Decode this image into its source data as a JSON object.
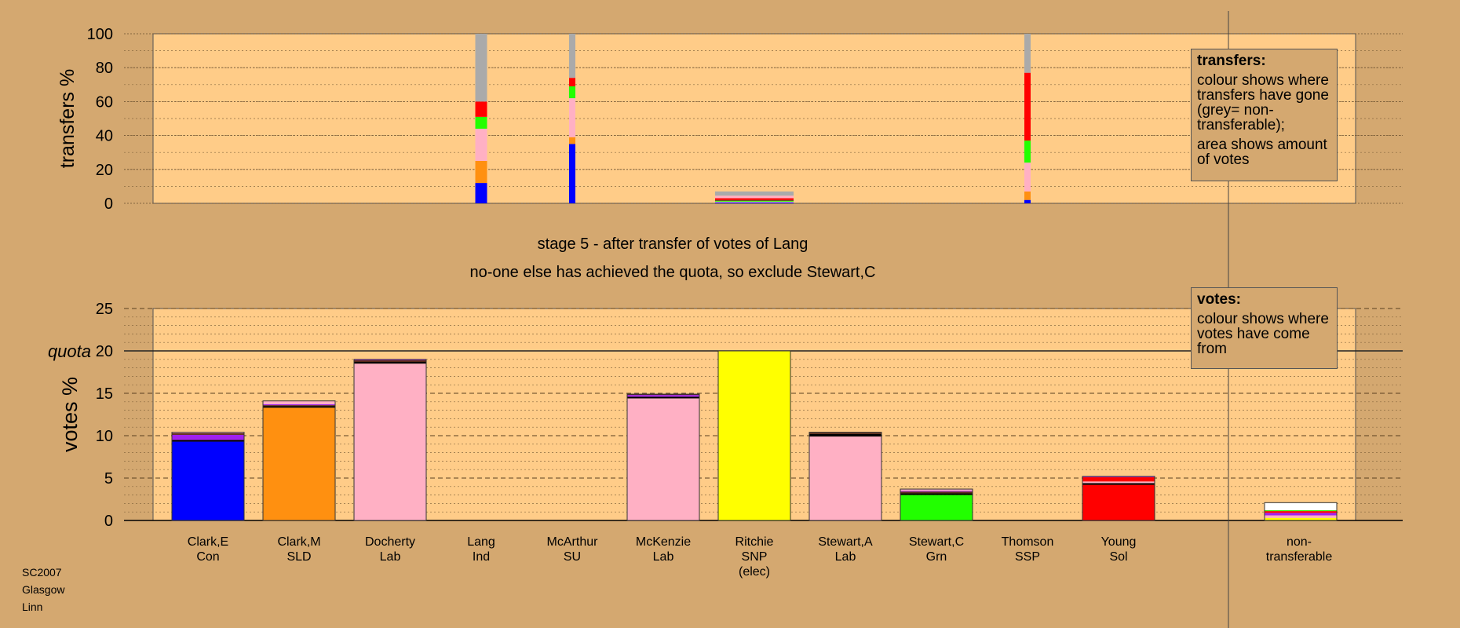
{
  "stage_line1": "stage 5 - after transfer of votes of Lang",
  "stage_line2": "no-one else has achieved the quota, so exclude Stewart,C",
  "caption": [
    "SC2007",
    "Glasgow",
    "Linn"
  ],
  "legend_transfers": {
    "title": "transfers:",
    "line1": "colour shows where transfers have gone (grey= non-transferable);",
    "line2": "area shows amount of votes"
  },
  "legend_votes": {
    "title": "votes:",
    "line1": "colour shows where votes have come from"
  },
  "colors": {
    "background": "#d4a870",
    "plot": "#ffcc88",
    "Con": "#0000ff",
    "SLD": "#ff9010",
    "Lab": "#ffb0c4",
    "SNP": "#ffff00",
    "Grn": "#22ff00",
    "Sol": "#ff0000",
    "Ind": "#a020f0",
    "SU": "#5a2a1a",
    "SSP": "#000000",
    "nontransferable": "#aaaaaa"
  },
  "chart_data": [
    {
      "type": "bar",
      "name": "transfers",
      "ylabel": "transfers %",
      "ylim": [
        0,
        100
      ],
      "yticks": [
        0,
        20,
        40,
        60,
        80,
        100
      ],
      "grid": true,
      "categories": [
        "Clark,E",
        "Clark,M",
        "Docherty",
        "Lang",
        "McArthur",
        "McKenzie",
        "Ritchie",
        "Stewart,A",
        "Stewart,C",
        "Thomson",
        "Young"
      ],
      "transfer_bars": [
        {
          "candidate": "Lang",
          "width_share": 0.15,
          "segments": [
            {
              "to": "Con",
              "value": 12
            },
            {
              "to": "SLD",
              "value": 13
            },
            {
              "to": "Lab",
              "value": 19
            },
            {
              "to": "Grn",
              "value": 7
            },
            {
              "to": "Sol",
              "value": 9
            },
            {
              "to": "nontransferable",
              "value": 40
            }
          ]
        },
        {
          "candidate": "McArthur",
          "width_share": 0.08,
          "segments": [
            {
              "to": "Con",
              "value": 35
            },
            {
              "to": "SLD",
              "value": 4
            },
            {
              "to": "Lab",
              "value": 23
            },
            {
              "to": "Grn",
              "value": 7
            },
            {
              "to": "Sol",
              "value": 5
            },
            {
              "to": "nontransferable",
              "value": 26
            }
          ]
        },
        {
          "candidate": "Ritchie",
          "width_share": 1.0,
          "segments": [
            {
              "to": "Con",
              "value": 0.5
            },
            {
              "to": "Lab",
              "value": 0.5
            },
            {
              "to": "Grn",
              "value": 0.5
            },
            {
              "to": "SU",
              "value": 0.5
            },
            {
              "to": "Sol",
              "value": 1
            },
            {
              "to": "Lab",
              "value": 1.5
            },
            {
              "to": "nontransferable",
              "value": 2.5
            }
          ]
        },
        {
          "candidate": "Thomson",
          "width_share": 0.08,
          "segments": [
            {
              "to": "Con",
              "value": 2
            },
            {
              "to": "SLD",
              "value": 5
            },
            {
              "to": "Lab",
              "value": 17
            },
            {
              "to": "Grn",
              "value": 13
            },
            {
              "to": "Sol",
              "value": 40
            },
            {
              "to": "nontransferable",
              "value": 23
            }
          ]
        }
      ]
    },
    {
      "type": "bar",
      "name": "votes",
      "ylabel": "votes %",
      "ylim": [
        0,
        25
      ],
      "yticks": [
        0,
        5,
        10,
        15,
        20,
        25
      ],
      "quota": 20,
      "quota_label": "quota",
      "grid": true,
      "categories": [
        {
          "name": "Clark,E",
          "party": "Con"
        },
        {
          "name": "Clark,M",
          "party": "SLD"
        },
        {
          "name": "Docherty",
          "party": "Lab"
        },
        {
          "name": "Lang",
          "party": "Ind"
        },
        {
          "name": "McArthur",
          "party": "SU"
        },
        {
          "name": "McKenzie",
          "party": "Lab"
        },
        {
          "name": "Ritchie",
          "party": "SNP",
          "note": "(elec)"
        },
        {
          "name": "Stewart,A",
          "party": "Lab"
        },
        {
          "name": "Stewart,C",
          "party": "Grn"
        },
        {
          "name": "Thomson",
          "party": "SSP"
        },
        {
          "name": "Young",
          "party": "Sol"
        },
        {
          "name": "",
          "party": ""
        },
        {
          "name": "non-",
          "party": "transferable"
        }
      ],
      "stacks": [
        [
          {
            "c": "Con",
            "v": 9.3
          },
          {
            "c": "SSP",
            "v": 0.2
          },
          {
            "c": "Ind",
            "v": 0.6
          },
          {
            "c": "SU",
            "v": 0.2
          },
          {
            "c": "Lab",
            "v": 0.1
          }
        ],
        [
          {
            "c": "SLD",
            "v": 13.3
          },
          {
            "c": "SSP",
            "v": 0.2
          },
          {
            "c": "SU",
            "v": 0.1
          },
          {
            "c": "Ind",
            "v": 0.1
          },
          {
            "c": "Lab",
            "v": 0.4
          }
        ],
        [
          {
            "c": "Lab",
            "v": 18.5
          },
          {
            "c": "SSP",
            "v": 0.2
          },
          {
            "c": "SU",
            "v": 0.2
          },
          {
            "c": "Ind",
            "v": 0.1
          }
        ],
        [],
        [],
        [
          {
            "c": "Lab",
            "v": 14.4
          },
          {
            "c": "SSP",
            "v": 0.2
          },
          {
            "c": "Ind",
            "v": 0.2
          },
          {
            "c": "SU",
            "v": 0.1
          }
        ],
        [
          {
            "c": "SNP",
            "v": 20.0
          }
        ],
        [
          {
            "c": "Lab",
            "v": 9.9
          },
          {
            "c": "SSP",
            "v": 0.3
          },
          {
            "c": "SU",
            "v": 0.2
          }
        ],
        [
          {
            "c": "Grn",
            "v": 3.0
          },
          {
            "c": "SSP",
            "v": 0.2
          },
          {
            "c": "SU",
            "v": 0.2
          },
          {
            "c": "Ind",
            "v": 0.1
          },
          {
            "c": "Lab",
            "v": 0.2
          }
        ],
        [],
        [
          {
            "c": "Sol",
            "v": 4.2
          },
          {
            "c": "SSP",
            "v": 0.2
          },
          {
            "c": "Lab",
            "v": 0.2
          },
          {
            "c": "Sol",
            "v": 0.5
          },
          {
            "c": "Ind",
            "v": 0.1
          }
        ],
        [],
        [
          {
            "c": "SNP",
            "v": 0.3
          },
          {
            "c": "Lab",
            "v": 0.3
          },
          {
            "c": "Ind",
            "v": 0.3
          },
          {
            "c": "Sol",
            "v": 0.2
          },
          {
            "c": "Grn",
            "v": 0.1
          },
          {
            "c": "white",
            "v": 0.9
          }
        ]
      ]
    }
  ]
}
